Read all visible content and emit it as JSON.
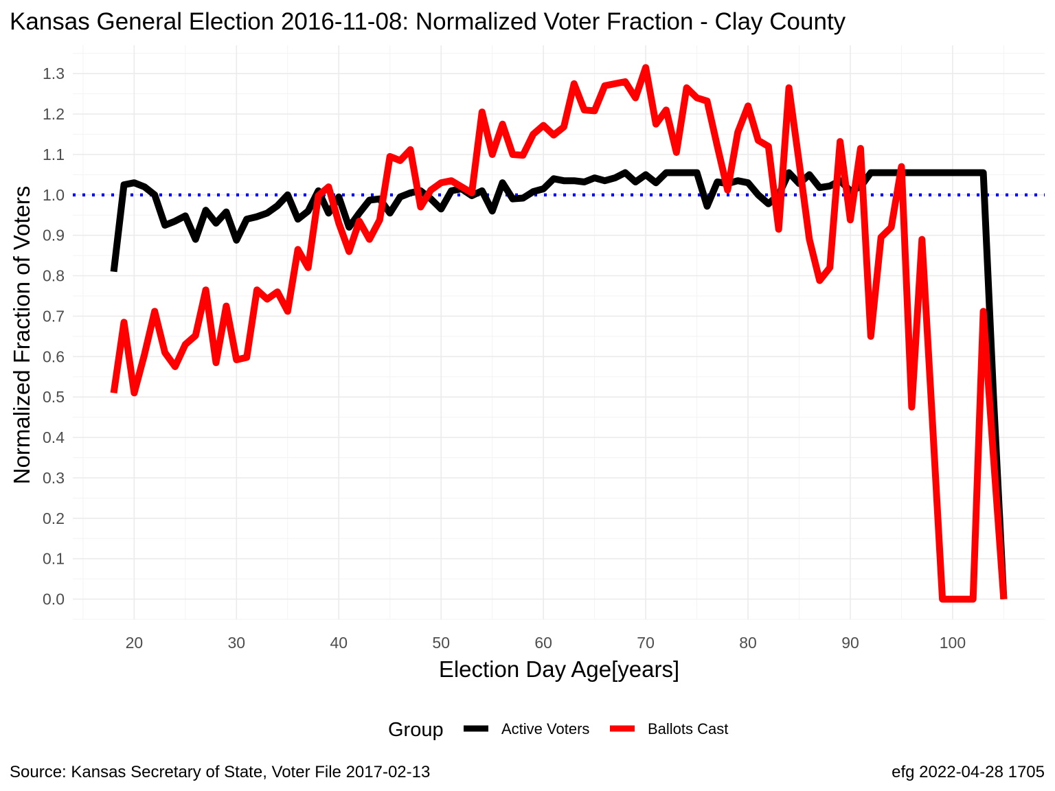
{
  "chart_data": {
    "type": "line",
    "title": "Kansas General Election 2016-11-08:  Normalized Voter Fraction - Clay County",
    "xlabel": "Election Day Age[years]",
    "ylabel": "Normalized Fraction of Voters",
    "xlim": [
      14,
      109
    ],
    "ylim": [
      -0.05,
      1.37
    ],
    "x_ticks": [
      "20",
      "30",
      "40",
      "50",
      "60",
      "70",
      "80",
      "90",
      "100"
    ],
    "y_ticks": [
      "0.0",
      "0.1",
      "0.2",
      "0.3",
      "0.4",
      "0.5",
      "0.6",
      "0.7",
      "0.8",
      "0.9",
      "1.0",
      "1.1",
      "1.2",
      "1.3"
    ],
    "grid": true,
    "reference_line": {
      "y": 1.0,
      "style": "dotted",
      "color": "#0000ff"
    },
    "legend": {
      "title": "Group",
      "position": "bottom",
      "entries": [
        "Active Voters",
        "Ballots Cast"
      ]
    },
    "x": [
      18,
      19,
      20,
      21,
      22,
      23,
      24,
      25,
      26,
      27,
      28,
      29,
      30,
      31,
      32,
      33,
      34,
      35,
      36,
      37,
      38,
      39,
      40,
      41,
      42,
      43,
      44,
      45,
      46,
      47,
      48,
      49,
      50,
      51,
      52,
      53,
      54,
      55,
      56,
      57,
      58,
      59,
      60,
      61,
      62,
      63,
      64,
      65,
      66,
      67,
      68,
      69,
      70,
      71,
      72,
      73,
      74,
      75,
      76,
      77,
      78,
      79,
      80,
      81,
      82,
      83,
      84,
      85,
      86,
      87,
      88,
      89,
      90,
      91,
      92,
      93,
      94,
      95,
      96,
      97,
      98,
      99,
      100,
      101,
      102,
      103,
      104,
      105
    ],
    "series": [
      {
        "name": "Active Voters",
        "color": "#000000",
        "values": [
          0.81,
          1.025,
          1.03,
          1.02,
          1.0,
          0.925,
          0.935,
          0.948,
          0.89,
          0.962,
          0.93,
          0.958,
          0.888,
          0.94,
          0.946,
          0.955,
          0.973,
          1.0,
          0.94,
          0.96,
          1.01,
          0.955,
          0.995,
          0.92,
          0.955,
          0.987,
          0.99,
          0.955,
          0.995,
          1.005,
          1.01,
          0.99,
          0.965,
          1.01,
          1.015,
          0.998,
          1.01,
          0.96,
          1.03,
          0.99,
          0.992,
          1.008,
          1.015,
          1.04,
          1.035,
          1.035,
          1.032,
          1.042,
          1.035,
          1.042,
          1.055,
          1.032,
          1.05,
          1.03,
          1.055,
          1.055,
          1.055,
          1.055,
          0.972,
          1.032,
          1.028,
          1.035,
          1.03,
          1.0,
          0.978,
          1.0,
          1.055,
          1.028,
          1.05,
          1.018,
          1.022,
          1.035,
          1.01,
          1.02,
          1.055,
          1.055,
          1.055,
          1.055,
          1.055,
          1.055,
          1.055,
          1.055,
          1.055,
          1.055,
          1.055,
          1.055,
          0.5,
          0.0
        ]
      },
      {
        "name": "Ballots Cast",
        "color": "#ff0000",
        "values": [
          0.51,
          0.685,
          0.51,
          0.605,
          0.712,
          0.61,
          0.575,
          0.63,
          0.652,
          0.765,
          0.585,
          0.725,
          0.592,
          0.598,
          0.765,
          0.742,
          0.76,
          0.712,
          0.865,
          0.82,
          0.998,
          1.02,
          0.93,
          0.86,
          0.935,
          0.89,
          0.938,
          1.095,
          1.085,
          1.112,
          0.97,
          1.012,
          1.03,
          1.035,
          1.02,
          1.005,
          1.205,
          1.1,
          1.175,
          1.1,
          1.098,
          1.15,
          1.172,
          1.148,
          1.168,
          1.275,
          1.21,
          1.208,
          1.27,
          1.275,
          1.28,
          1.24,
          1.315,
          1.175,
          1.21,
          1.105,
          1.265,
          1.24,
          1.232,
          1.12,
          1.012,
          1.155,
          1.22,
          1.135,
          1.12,
          0.915,
          1.265,
          1.08,
          0.89,
          0.788,
          0.82,
          1.132,
          0.938,
          1.115,
          0.65,
          0.895,
          0.92,
          1.07,
          0.475,
          0.89,
          0.45,
          0.0,
          0.0,
          0.0,
          0.0,
          0.712,
          0.35,
          0.0
        ]
      }
    ]
  },
  "footer": {
    "source": "Source:  Kansas Secretary of State, Voter File  2017-02-13",
    "credit": "efg 2022-04-28 1705"
  }
}
